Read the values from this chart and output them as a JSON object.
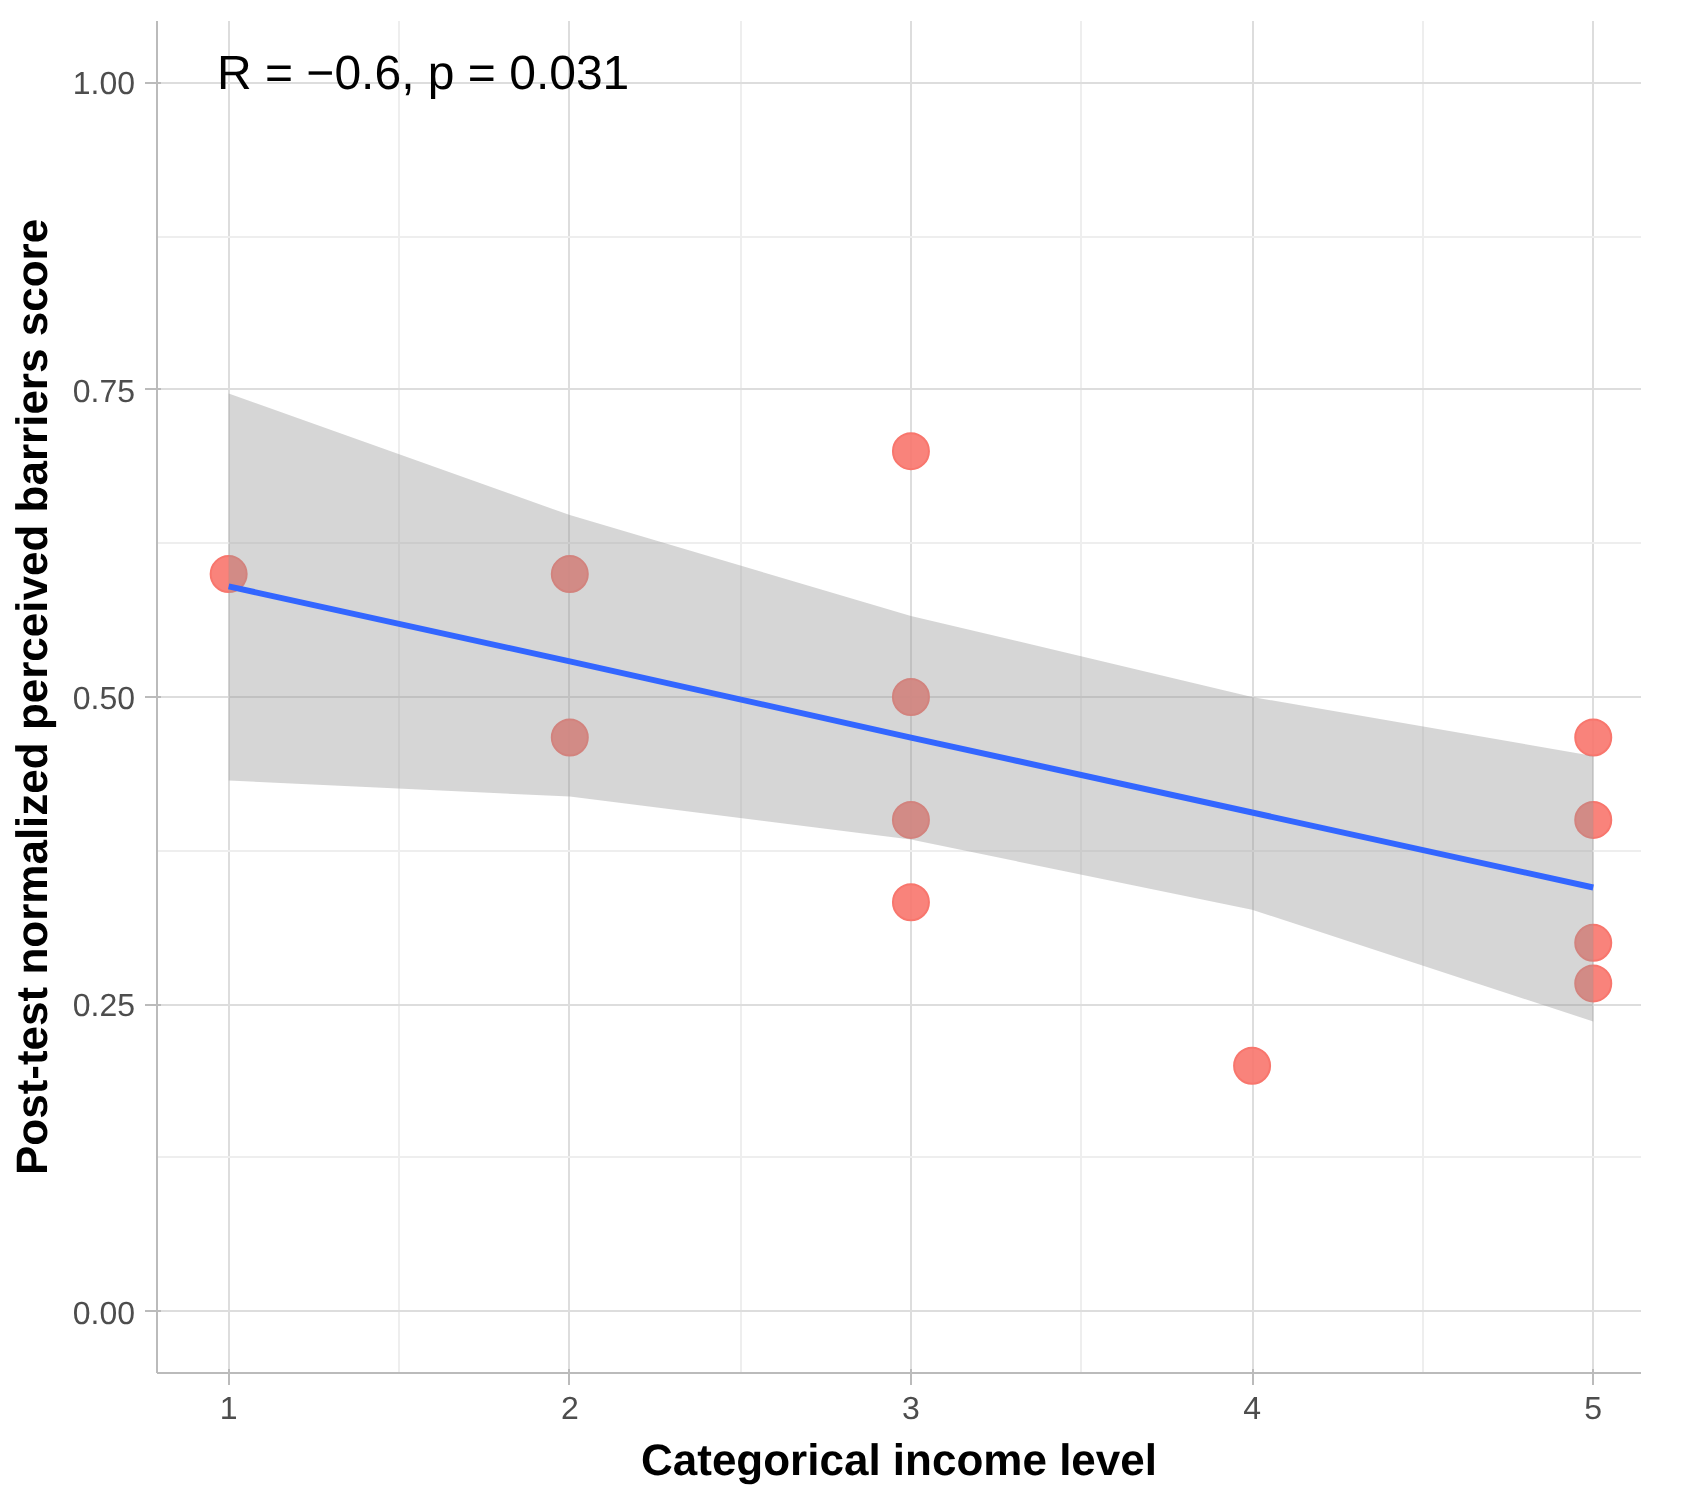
{
  "chart_data": {
    "type": "scatter",
    "xlabel": "Categorical income level",
    "ylabel": "Post-test normalized perceived barriers score",
    "annotations": [
      "R = −0.6, p = 0.031"
    ],
    "xlim": [
      0.79,
      5.14
    ],
    "ylim": [
      -0.05,
      1.05
    ],
    "xticks": [
      1,
      2,
      3,
      4,
      5
    ],
    "yticks": [
      {
        "value": 0,
        "label": "0.00"
      },
      {
        "value": 0.25,
        "label": "0.25"
      },
      {
        "value": 0.5,
        "label": "0.50"
      },
      {
        "value": 0.75,
        "label": "0.75"
      },
      {
        "value": 1,
        "label": "1.00"
      }
    ],
    "grid": true,
    "series": [
      {
        "marker": "circle",
        "color": "#f8766d",
        "x": [
          1,
          2,
          2,
          3,
          3,
          3,
          3,
          4,
          5,
          5,
          5,
          5
        ],
        "values": [
          0.6,
          0.6,
          0.467,
          0.7,
          0.5,
          0.4,
          0.333,
          0.2,
          0.467,
          0.4,
          0.3,
          0.267
        ]
      },
      {
        "type": "line",
        "color": "#3366ff",
        "x": [
          1,
          2,
          3,
          4,
          5
        ],
        "values": [
          0.59,
          0.529,
          0.467,
          0.406,
          0.345
        ],
        "lower": [
          0.432,
          0.419,
          0.384,
          0.327,
          0.236
        ],
        "upper": [
          0.747,
          0.648,
          0.566,
          0.5,
          0.452
        ]
      }
    ]
  }
}
